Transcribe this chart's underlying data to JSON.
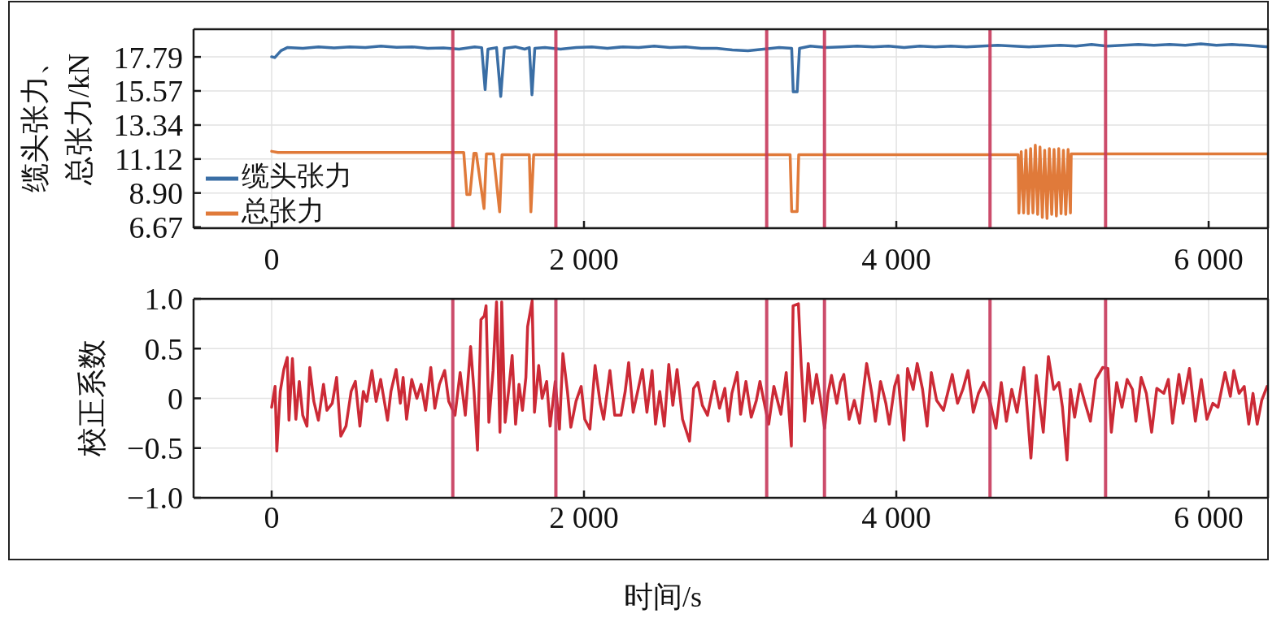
{
  "chart_data": [
    {
      "type": "line",
      "ylabel": "缆头张力、总张力/kN",
      "xlim": [
        -500,
        6380
      ],
      "xticks": [
        0,
        {
          "value": 2000,
          "label": "2 000"
        },
        {
          "value": 4000,
          "label": "4 000"
        },
        {
          "value": 6000,
          "label": "6 000"
        }
      ],
      "ylim": [
        6.6,
        19.6
      ],
      "yticks": [
        6.67,
        {
          "value": 8.9,
          "label": "8.90"
        },
        11.12,
        13.34,
        15.57,
        17.79
      ],
      "grid": true,
      "legend": "bottom left",
      "series": [
        {
          "name": "缆头张力",
          "color": "#3a6ea5",
          "x": [
            0,
            20,
            60,
            100,
            200,
            300,
            400,
            500,
            600,
            700,
            800,
            900,
            1000,
            1100,
            1200,
            1300,
            1345,
            1367,
            1385,
            1440,
            1467,
            1490,
            1560,
            1620,
            1650,
            1667,
            1685,
            1750,
            1850,
            1950,
            2050,
            2150,
            2250,
            2350,
            2450,
            2550,
            2650,
            2750,
            2850,
            2950,
            3050,
            3150,
            3250,
            3330,
            3340,
            3365,
            3380,
            3450,
            3550,
            3650,
            3750,
            3850,
            3950,
            4050,
            4150,
            4250,
            4350,
            4450,
            4550,
            4650,
            4750,
            4850,
            4950,
            5050,
            5150,
            5250,
            5350,
            5450,
            5550,
            5650,
            5750,
            5850,
            5950,
            6050,
            6150,
            6250,
            6380
          ],
          "values": [
            17.8,
            17.75,
            18.2,
            18.4,
            18.35,
            18.45,
            18.38,
            18.45,
            18.4,
            18.5,
            18.42,
            18.45,
            18.35,
            18.38,
            18.3,
            18.45,
            18.4,
            15.66,
            18.3,
            18.4,
            15.21,
            18.35,
            18.45,
            18.3,
            18.4,
            15.32,
            18.35,
            18.4,
            18.3,
            18.4,
            18.45,
            18.35,
            18.45,
            18.4,
            18.5,
            18.4,
            18.45,
            18.35,
            18.35,
            18.25,
            18.2,
            18.3,
            18.4,
            18.35,
            15.51,
            15.51,
            18.35,
            18.5,
            18.4,
            18.45,
            18.5,
            18.45,
            18.5,
            18.4,
            18.5,
            18.45,
            18.5,
            18.45,
            18.5,
            18.55,
            18.5,
            18.45,
            18.5,
            18.55,
            18.5,
            18.6,
            18.5,
            18.55,
            18.6,
            18.55,
            18.6,
            18.55,
            18.65,
            18.55,
            18.6,
            18.55,
            18.45
          ]
        },
        {
          "name": "总张力",
          "color": "#e07a3a",
          "x": [
            0,
            40,
            1230,
            1250,
            1270,
            1295,
            1310,
            1360,
            1375,
            1420,
            1460,
            1475,
            1650,
            1660,
            1678,
            3320,
            3330,
            3365,
            3375,
            4780,
            4785,
            4800,
            4815,
            4830,
            4845,
            4860,
            4875,
            4890,
            4905,
            4920,
            4935,
            4950,
            4965,
            4980,
            4995,
            5010,
            5025,
            5040,
            5055,
            5070,
            5085,
            5100,
            5115,
            5120,
            6380
          ],
          "values": [
            11.62,
            11.55,
            11.55,
            8.8,
            8.8,
            11.5,
            11.5,
            7.89,
            11.45,
            11.45,
            7.67,
            11.4,
            11.4,
            7.67,
            11.4,
            11.4,
            7.69,
            7.69,
            11.4,
            11.4,
            7.58,
            11.6,
            7.6,
            11.7,
            7.55,
            11.8,
            7.6,
            12.02,
            7.5,
            11.9,
            7.3,
            11.7,
            7.24,
            11.8,
            7.5,
            11.75,
            7.4,
            11.8,
            7.55,
            11.7,
            7.5,
            11.75,
            7.6,
            11.45,
            11.45
          ]
        }
      ],
      "ref_lines": [
        {
          "axis": "x",
          "value": 1160,
          "color": "#c7395b"
        },
        {
          "axis": "x",
          "value": 1820,
          "color": "#c7395b"
        },
        {
          "axis": "x",
          "value": 3170,
          "color": "#c7395b"
        },
        {
          "axis": "x",
          "value": 3540,
          "color": "#c7395b"
        },
        {
          "axis": "x",
          "value": 4600,
          "color": "#c7395b"
        },
        {
          "axis": "x",
          "value": 5340,
          "color": "#c7395b"
        }
      ]
    },
    {
      "type": "line",
      "xlabel": "时间/s",
      "ylabel": "校正系数",
      "xlim": [
        -500,
        6380
      ],
      "xticks": [
        0,
        {
          "value": 2000,
          "label": "2 000"
        },
        {
          "value": 4000,
          "label": "4 000"
        },
        {
          "value": 6000,
          "label": "6 000"
        }
      ],
      "ylim": [
        -1,
        1
      ],
      "yticks": [
        {
          "value": -1,
          "label": "−1.0"
        },
        {
          "value": -0.5,
          "label": "−0.5"
        },
        0,
        0.5,
        {
          "value": 1,
          "label": "1.0"
        }
      ],
      "grid": true,
      "series": [
        {
          "color": "#cc2a36",
          "x": [
            0,
            22,
            33,
            55,
            78,
            100,
            111,
            133,
            155,
            177,
            199,
            226,
            244,
            270,
            299,
            332,
            354,
            388,
            416,
            443,
            476,
            509,
            536,
            565,
            587,
            609,
            642,
            669,
            698,
            742,
            764,
            797,
            824,
            842,
            864,
            897,
            930,
            957,
            986,
            1019,
            1045,
            1074,
            1108,
            1134,
            1174,
            1207,
            1240,
            1274,
            1296,
            1318,
            1340,
            1362,
            1373,
            1391,
            1418,
            1440,
            1462,
            1473,
            1495,
            1517,
            1540,
            1562,
            1584,
            1606,
            1628,
            1639,
            1668,
            1683,
            1710,
            1732,
            1761,
            1783,
            1816,
            1843,
            1865,
            1894,
            1916,
            1949,
            1982,
            2005,
            2038,
            2071,
            2104,
            2126,
            2166,
            2197,
            2237,
            2264,
            2286,
            2315,
            2348,
            2374,
            2403,
            2436,
            2458,
            2485,
            2514,
            2543,
            2569,
            2596,
            2631,
            2676,
            2702,
            2729,
            2758,
            2791,
            2835,
            2868,
            2902,
            2925,
            2947,
            2981,
            3003,
            3037,
            3071,
            3104,
            3127,
            3160,
            3183,
            3216,
            3261,
            3295,
            3328,
            3339,
            3373,
            3391,
            3413,
            3436,
            3462,
            3489,
            3518,
            3541,
            3563,
            3585,
            3619,
            3642,
            3664,
            3698,
            3731,
            3765,
            3810,
            3843,
            3866,
            3899,
            3933,
            3955,
            3989,
            4011,
            4049,
            4072,
            4108,
            4134,
            4168,
            4197,
            4224,
            4258,
            4302,
            4358,
            4392,
            4426,
            4459,
            4493,
            4526,
            4560,
            4593,
            4638,
            4672,
            4705,
            4739,
            4773,
            4817,
            4862,
            4896,
            4941,
            4974,
            5008,
            5041,
            5064,
            5093,
            5115,
            5142,
            5176,
            5209,
            5243,
            5277,
            5321,
            5355,
            5377,
            5411,
            5445,
            5478,
            5512,
            5534,
            5568,
            5601,
            5635,
            5668,
            5713,
            5742,
            5769,
            5810,
            5836,
            5877,
            5915,
            5953,
            5989,
            6027,
            6060,
            6105,
            6139,
            6161,
            6195,
            6228,
            6257,
            6284,
            6311,
            6340,
            6374
          ],
          "values": [
            -0.09,
            0.12,
            -0.53,
            0.07,
            0.29,
            0.41,
            -0.22,
            0.4,
            -0.21,
            0.17,
            -0.17,
            -0.28,
            0.31,
            -0.03,
            -0.22,
            0.14,
            -0.12,
            -0.05,
            0.21,
            -0.38,
            -0.28,
            0.07,
            0.17,
            -0.28,
            0.07,
            -0.03,
            0.28,
            -0.03,
            0.19,
            -0.22,
            0.07,
            0.29,
            -0.05,
            0.21,
            -0.21,
            0.19,
            0,
            0.14,
            -0.12,
            0.31,
            -0.1,
            0.14,
            0.28,
            -0.03,
            -0.17,
            0.26,
            -0.17,
            0.52,
            0.07,
            -0.52,
            0.79,
            0.83,
            0.93,
            -0.24,
            0.28,
            0.97,
            -0.34,
            0.97,
            -0.24,
            0.07,
            0.43,
            -0.26,
            0.14,
            -0.12,
            0.21,
            0.72,
            0.98,
            -0.14,
            0.33,
            0,
            0.17,
            -0.28,
            0.17,
            -0.31,
            0.45,
            0.07,
            -0.29,
            -0.03,
            0.12,
            -0.21,
            -0.31,
            0.33,
            -0.05,
            -0.21,
            0.28,
            -0.17,
            -0.17,
            0.07,
            0.36,
            -0.14,
            0.1,
            0.29,
            -0.14,
            0.28,
            -0.26,
            0.07,
            -0.28,
            0.34,
            -0.07,
            0.29,
            -0.21,
            -0.43,
            0.1,
            0.16,
            -0.07,
            -0.17,
            0.17,
            -0.1,
            0.1,
            -0.23,
            0.05,
            0.26,
            -0.16,
            0.17,
            -0.19,
            -0.02,
            0.17,
            -0.09,
            -0.26,
            0.12,
            -0.16,
            0.26,
            -0.48,
            0.93,
            0.95,
            0.33,
            -0.23,
            0.35,
            -0.05,
            0.24,
            -0.05,
            -0.3,
            0.05,
            0.23,
            -0.05,
            0.16,
            0.24,
            -0.21,
            -0.02,
            -0.25,
            0.35,
            0.05,
            -0.23,
            0.17,
            -0.05,
            -0.26,
            0.12,
            0.23,
            -0.42,
            0.3,
            0.09,
            0.35,
            0.09,
            -0.28,
            0.26,
            -0.02,
            -0.12,
            0.24,
            -0.05,
            0.09,
            0.28,
            -0.14,
            0.05,
            0.16,
            0.02,
            -0.3,
            0.16,
            -0.23,
            0.09,
            -0.14,
            0.31,
            -0.6,
            0.23,
            -0.34,
            0.42,
            0.09,
            0.16,
            -0.09,
            -0.62,
            0.09,
            -0.19,
            0.14,
            -0.05,
            -0.23,
            0.19,
            0.31,
            0.3,
            -0.34,
            0.16,
            -0.09,
            0.19,
            0.09,
            -0.23,
            0.21,
            0.05,
            -0.34,
            0.1,
            0.05,
            0.19,
            -0.25,
            0.24,
            -0.05,
            0.3,
            -0.23,
            0.19,
            -0.21,
            -0.05,
            -0.09,
            0.26,
            0.02,
            0.28,
            0.05,
            0.12,
            -0.26,
            0.05,
            -0.26,
            -0.02,
            0.12
          ]
        }
      ],
      "ref_lines": [
        {
          "axis": "x",
          "value": 1160,
          "color": "#c7395b"
        },
        {
          "axis": "x",
          "value": 1820,
          "color": "#c7395b"
        },
        {
          "axis": "x",
          "value": 3170,
          "color": "#c7395b"
        },
        {
          "axis": "x",
          "value": 3540,
          "color": "#c7395b"
        },
        {
          "axis": "x",
          "value": 4600,
          "color": "#c7395b"
        },
        {
          "axis": "x",
          "value": 5340,
          "color": "#c7395b"
        }
      ]
    }
  ]
}
